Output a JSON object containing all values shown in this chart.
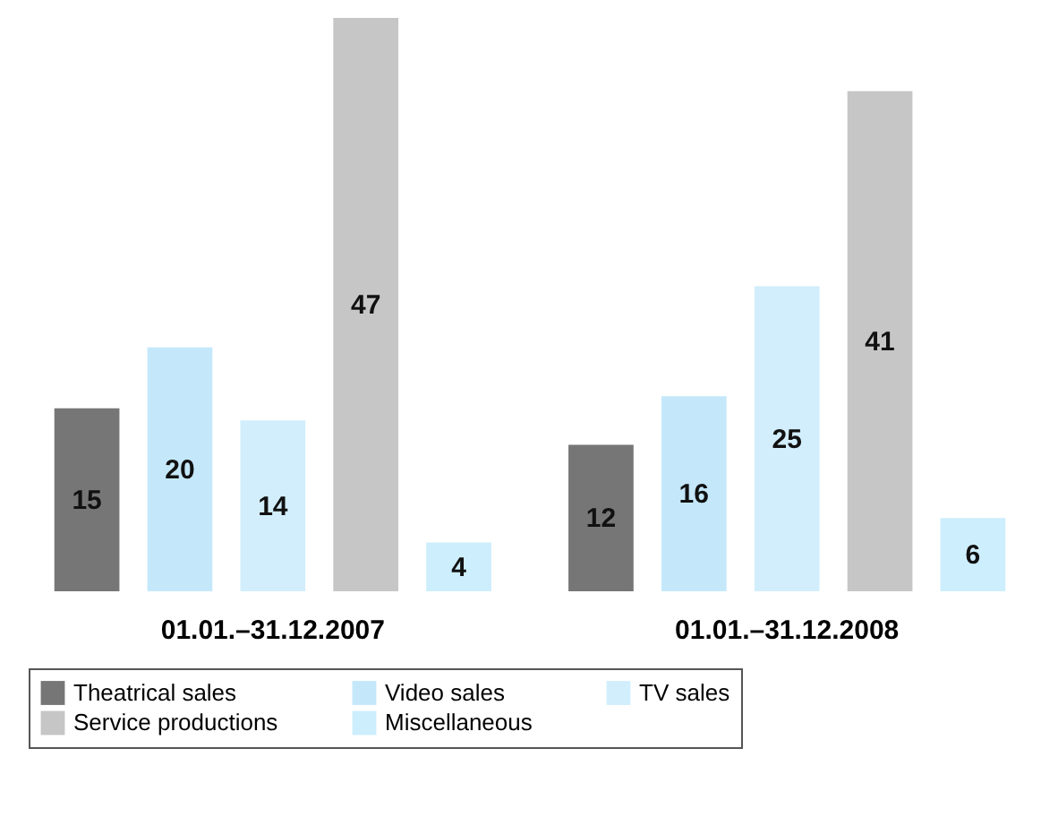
{
  "chart_data": {
    "type": "bar",
    "categories": [
      "01.01.–31.12.2007",
      "01.01.–31.12.2008"
    ],
    "series": [
      {
        "name": "Theatrical sales",
        "color": "#767676",
        "values": [
          15,
          12
        ]
      },
      {
        "name": "Video sales",
        "color": "#c4e8fa",
        "values": [
          20,
          16
        ]
      },
      {
        "name": "TV sales",
        "color": "#d2eefc",
        "values": [
          14,
          25
        ]
      },
      {
        "name": "Service productions",
        "color": "#c6c6c6",
        "values": [
          47,
          41
        ]
      },
      {
        "name": "Miscellaneous",
        "color": "#cdeefc",
        "values": [
          4,
          6
        ]
      }
    ],
    "data_labels": true,
    "legend": "bottom"
  }
}
